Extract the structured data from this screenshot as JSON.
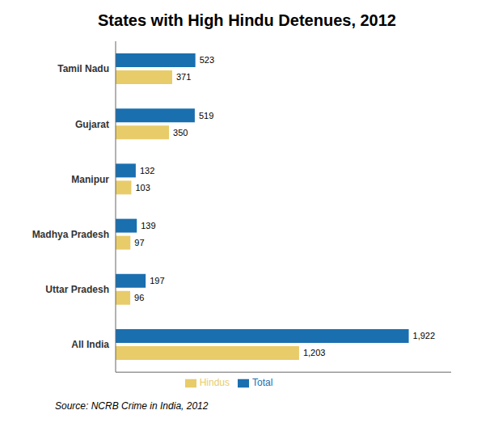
{
  "chart_data": {
    "type": "bar",
    "title": "States with High Hindu Detenues, 2012",
    "orientation": "horizontal",
    "categories": [
      "Tamil Nadu",
      "Gujarat",
      "Manipur",
      "Madhya Pradesh",
      "Uttar Pradesh",
      "All India"
    ],
    "series": [
      {
        "name": "Total",
        "color": "#1a6faf",
        "values": [
          523,
          519,
          132,
          139,
          197,
          1922
        ],
        "value_labels": [
          "523",
          "519",
          "132",
          "139",
          "197",
          "1,922"
        ]
      },
      {
        "name": "Hindus",
        "color": "#e8cc6a",
        "values": [
          371,
          350,
          103,
          97,
          96,
          1203
        ],
        "value_labels": [
          "371",
          "350",
          "103",
          "97",
          "96",
          "1,203"
        ]
      }
    ],
    "xlim": [
      0,
      2200
    ],
    "data_labels": true,
    "tick_labels": "y",
    "grid": false,
    "legend": "bottom",
    "annotations": [
      "Source: NCRB Crime in India, 2012"
    ]
  }
}
